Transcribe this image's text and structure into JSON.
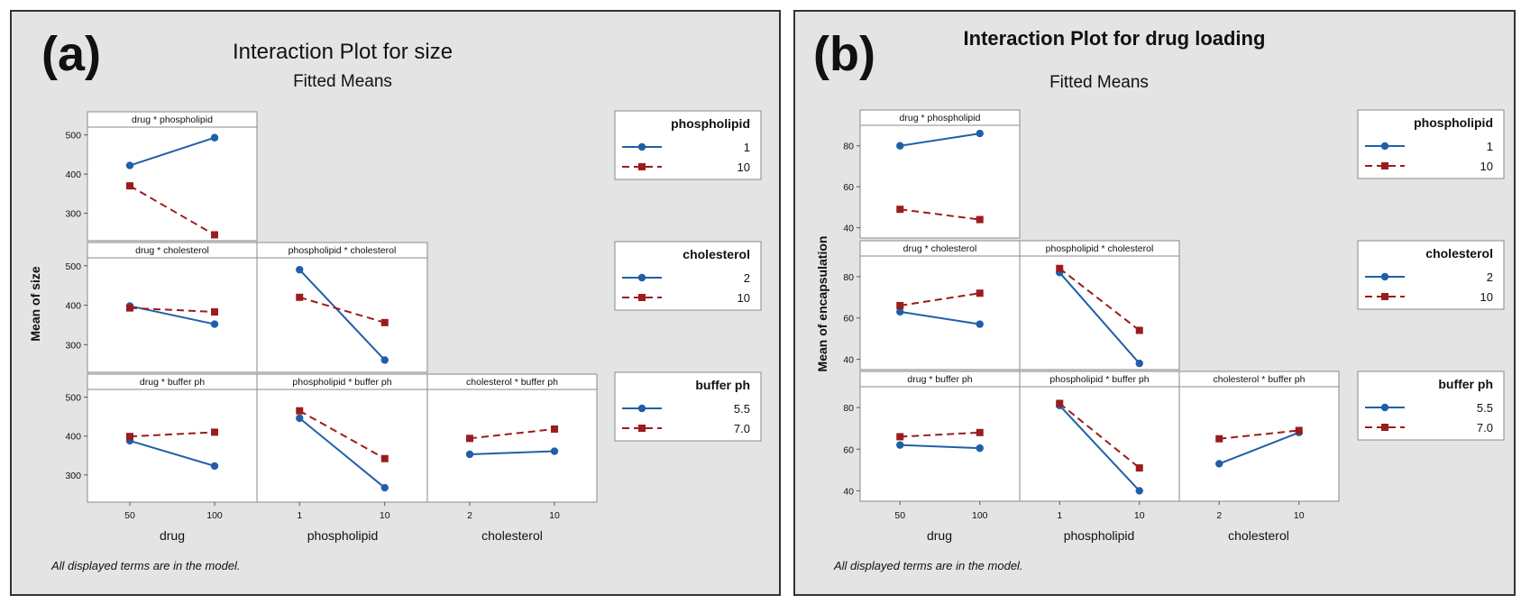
{
  "colors": {
    "series1": "#1f5fa8",
    "series2": "#9b1c1c",
    "frame_bg": "#e4e4e4"
  },
  "chart_data": [
    {
      "type": "line",
      "panel_label": "(a)",
      "title": "Interaction Plot for size",
      "subtitle": "Fitted Means",
      "ylabel": "Mean of size",
      "footnote": "All displayed terms are in the model.",
      "factors": [
        {
          "name": "drug",
          "levels": [
            "50",
            "100"
          ]
        },
        {
          "name": "phospholipid",
          "levels": [
            "1",
            "10"
          ]
        },
        {
          "name": "cholesterol",
          "levels": [
            "2",
            "10"
          ]
        },
        {
          "name": "buffer ph",
          "levels": [
            "5.5",
            "7.0"
          ]
        }
      ],
      "ylim": [
        230,
        520
      ],
      "yticks": [
        300,
        400,
        500
      ],
      "legends": [
        {
          "title": "phospholipid",
          "entries": [
            "1",
            "10"
          ]
        },
        {
          "title": "cholesterol",
          "entries": [
            "2",
            "10"
          ]
        },
        {
          "title": "buffer ph",
          "entries": [
            "5.5",
            "7.0"
          ]
        }
      ],
      "cells": [
        {
          "row": 0,
          "col": 0,
          "title": "drug * phospholipid",
          "series": [
            {
              "values": [
                422,
                493
              ]
            },
            {
              "values": [
                370,
                245
              ]
            }
          ]
        },
        {
          "row": 1,
          "col": 0,
          "title": "drug * cholesterol",
          "series": [
            {
              "values": [
                398,
                352
              ]
            },
            {
              "values": [
                393,
                383
              ]
            }
          ]
        },
        {
          "row": 1,
          "col": 1,
          "title": "phospholipid * cholesterol",
          "series": [
            {
              "values": [
                490,
                261
              ]
            },
            {
              "values": [
                420,
                356
              ]
            }
          ]
        },
        {
          "row": 2,
          "col": 0,
          "title": "drug * buffer ph",
          "series": [
            {
              "values": [
                388,
                323
              ]
            },
            {
              "values": [
                399,
                410
              ]
            }
          ]
        },
        {
          "row": 2,
          "col": 1,
          "title": "phospholipid * buffer ph",
          "series": [
            {
              "values": [
                446,
                267
              ]
            },
            {
              "values": [
                465,
                342
              ]
            }
          ]
        },
        {
          "row": 2,
          "col": 2,
          "title": "cholesterol * buffer ph",
          "series": [
            {
              "values": [
                353,
                361
              ]
            },
            {
              "values": [
                394,
                418
              ]
            }
          ]
        }
      ]
    },
    {
      "type": "line",
      "panel_label": "(b)",
      "title": "Interaction Plot for drug loading",
      "subtitle": "Fitted Means",
      "ylabel": "Mean of encapsulation",
      "footnote": "All displayed terms are in the model.",
      "factors": [
        {
          "name": "drug",
          "levels": [
            "50",
            "100"
          ]
        },
        {
          "name": "phospholipid",
          "levels": [
            "1",
            "10"
          ]
        },
        {
          "name": "cholesterol",
          "levels": [
            "2",
            "10"
          ]
        },
        {
          "name": "buffer ph",
          "levels": [
            "5.5",
            "7.0"
          ]
        }
      ],
      "ylim": [
        35,
        90
      ],
      "yticks": [
        40,
        60,
        80
      ],
      "legends": [
        {
          "title": "phospholipid",
          "entries": [
            "1",
            "10"
          ]
        },
        {
          "title": "cholesterol",
          "entries": [
            "2",
            "10"
          ]
        },
        {
          "title": "buffer ph",
          "entries": [
            "5.5",
            "7.0"
          ]
        }
      ],
      "cells": [
        {
          "row": 0,
          "col": 0,
          "title": "drug * phospholipid",
          "series": [
            {
              "values": [
                80,
                86
              ]
            },
            {
              "values": [
                49,
                44
              ]
            }
          ]
        },
        {
          "row": 1,
          "col": 0,
          "title": "drug * cholesterol",
          "series": [
            {
              "values": [
                63,
                57
              ]
            },
            {
              "values": [
                66,
                72
              ]
            }
          ]
        },
        {
          "row": 1,
          "col": 1,
          "title": "phospholipid * cholesterol",
          "series": [
            {
              "values": [
                82,
                38
              ]
            },
            {
              "values": [
                84,
                54
              ]
            }
          ]
        },
        {
          "row": 2,
          "col": 0,
          "title": "drug * buffer ph",
          "series": [
            {
              "values": [
                62,
                60.5
              ]
            },
            {
              "values": [
                66,
                68
              ]
            }
          ]
        },
        {
          "row": 2,
          "col": 1,
          "title": "phospholipid * buffer ph",
          "series": [
            {
              "values": [
                81,
                40
              ]
            },
            {
              "values": [
                82,
                51
              ]
            }
          ]
        },
        {
          "row": 2,
          "col": 2,
          "title": "cholesterol * buffer ph",
          "series": [
            {
              "values": [
                53,
                68
              ]
            },
            {
              "values": [
                65,
                69
              ]
            }
          ]
        }
      ]
    }
  ]
}
